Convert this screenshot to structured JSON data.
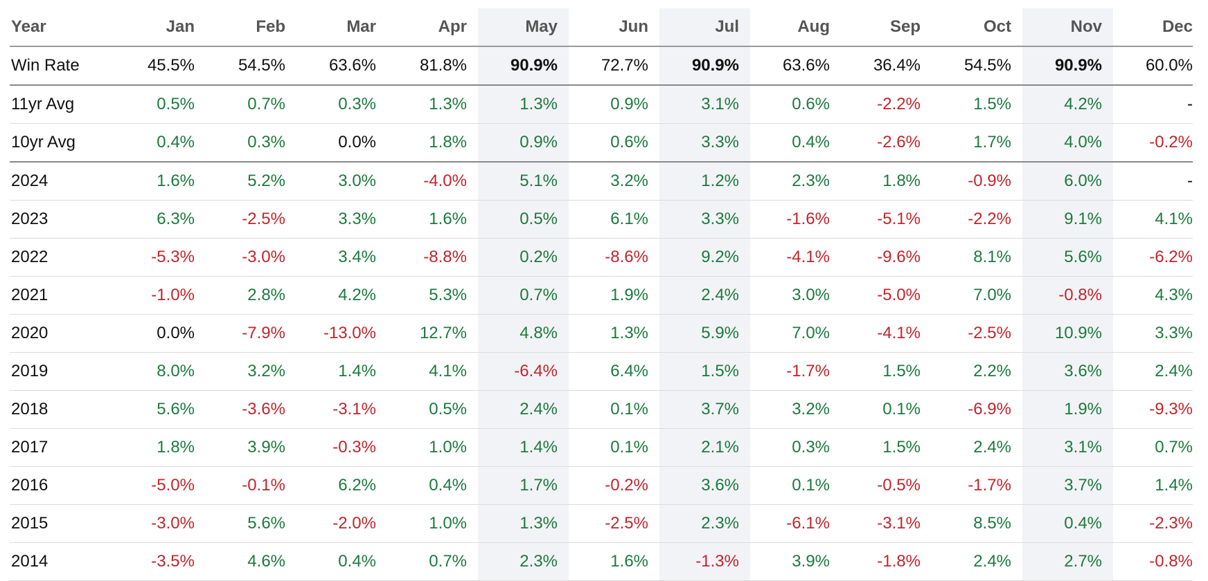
{
  "table": {
    "columns": [
      "Year",
      "Jan",
      "Feb",
      "Mar",
      "Apr",
      "May",
      "Jun",
      "Jul",
      "Aug",
      "Sep",
      "Oct",
      "Nov",
      "Dec"
    ],
    "rows": [
      [
        "Win Rate",
        "45.5%",
        "54.5%",
        "63.6%",
        "81.8%",
        "90.9%",
        "72.7%",
        "90.9%",
        "63.6%",
        "36.4%",
        "54.5%",
        "90.9%",
        "60.0%"
      ],
      [
        "11yr Avg",
        "0.5%",
        "0.7%",
        "0.3%",
        "1.3%",
        "1.3%",
        "0.9%",
        "3.1%",
        "0.6%",
        "-2.2%",
        "1.5%",
        "4.2%",
        "-"
      ],
      [
        "10yr Avg",
        "0.4%",
        "0.3%",
        "0.0%",
        "1.8%",
        "0.9%",
        "0.6%",
        "3.3%",
        "0.4%",
        "-2.6%",
        "1.7%",
        "4.0%",
        "-0.2%"
      ],
      [
        "2024",
        "1.6%",
        "5.2%",
        "3.0%",
        "-4.0%",
        "5.1%",
        "3.2%",
        "1.2%",
        "2.3%",
        "1.8%",
        "-0.9%",
        "6.0%",
        "-"
      ],
      [
        "2023",
        "6.3%",
        "-2.5%",
        "3.3%",
        "1.6%",
        "0.5%",
        "6.1%",
        "3.3%",
        "-1.6%",
        "-5.1%",
        "-2.2%",
        "9.1%",
        "4.1%"
      ],
      [
        "2022",
        "-5.3%",
        "-3.0%",
        "3.4%",
        "-8.8%",
        "0.2%",
        "-8.6%",
        "9.2%",
        "-4.1%",
        "-9.6%",
        "8.1%",
        "5.6%",
        "-6.2%"
      ],
      [
        "2021",
        "-1.0%",
        "2.8%",
        "4.2%",
        "5.3%",
        "0.7%",
        "1.9%",
        "2.4%",
        "3.0%",
        "-5.0%",
        "7.0%",
        "-0.8%",
        "4.3%"
      ],
      [
        "2020",
        "0.0%",
        "-7.9%",
        "-13.0%",
        "12.7%",
        "4.8%",
        "1.3%",
        "5.9%",
        "7.0%",
        "-4.1%",
        "-2.5%",
        "10.9%",
        "3.3%"
      ],
      [
        "2019",
        "8.0%",
        "3.2%",
        "1.4%",
        "4.1%",
        "-6.4%",
        "6.4%",
        "1.5%",
        "-1.7%",
        "1.5%",
        "2.2%",
        "3.6%",
        "2.4%"
      ],
      [
        "2018",
        "5.6%",
        "-3.6%",
        "-3.1%",
        "0.5%",
        "2.4%",
        "0.1%",
        "3.7%",
        "3.2%",
        "0.1%",
        "-6.9%",
        "1.9%",
        "-9.3%"
      ],
      [
        "2017",
        "1.8%",
        "3.9%",
        "-0.3%",
        "1.0%",
        "1.4%",
        "0.1%",
        "2.1%",
        "0.3%",
        "1.5%",
        "2.4%",
        "3.1%",
        "0.7%"
      ],
      [
        "2016",
        "-5.0%",
        "-0.1%",
        "6.2%",
        "0.4%",
        "1.7%",
        "-0.2%",
        "3.6%",
        "0.1%",
        "-0.5%",
        "-1.7%",
        "3.7%",
        "1.4%"
      ],
      [
        "2015",
        "-3.0%",
        "5.6%",
        "-2.0%",
        "1.0%",
        "1.3%",
        "-2.5%",
        "2.3%",
        "-6.1%",
        "-3.1%",
        "8.5%",
        "0.4%",
        "-2.3%"
      ],
      [
        "2014",
        "-3.5%",
        "4.6%",
        "0.4%",
        "0.7%",
        "2.3%",
        "1.6%",
        "-1.3%",
        "3.9%",
        "-1.8%",
        "2.4%",
        "2.7%",
        "-0.8%"
      ]
    ]
  }
}
